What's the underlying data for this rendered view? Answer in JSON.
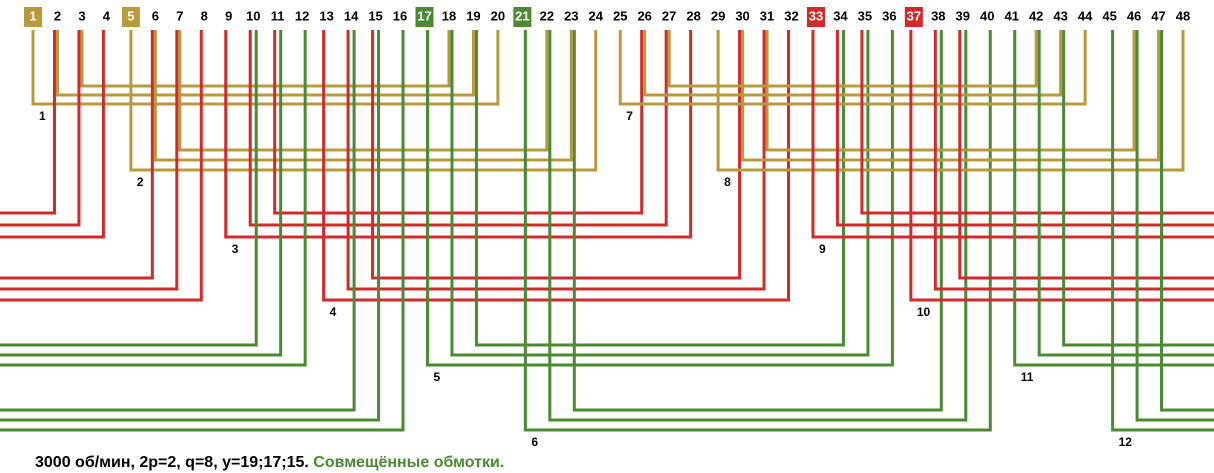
{
  "slots": [
    {
      "label": "1",
      "color": "#b89a3c"
    },
    {
      "label": "2"
    },
    {
      "label": "3"
    },
    {
      "label": "4"
    },
    {
      "label": "5",
      "color": "#b89a3c"
    },
    {
      "label": "6"
    },
    {
      "label": "7"
    },
    {
      "label": "8"
    },
    {
      "label": "9"
    },
    {
      "label": "10"
    },
    {
      "label": "11"
    },
    {
      "label": "12"
    },
    {
      "label": "13"
    },
    {
      "label": "14"
    },
    {
      "label": "15"
    },
    {
      "label": "16"
    },
    {
      "label": "17",
      "color": "#4a8a32"
    },
    {
      "label": "18"
    },
    {
      "label": "19"
    },
    {
      "label": "20"
    },
    {
      "label": "21",
      "color": "#4a8a32"
    },
    {
      "label": "22"
    },
    {
      "label": "23"
    },
    {
      "label": "24"
    },
    {
      "label": "25"
    },
    {
      "label": "26"
    },
    {
      "label": "27"
    },
    {
      "label": "28"
    },
    {
      "label": "29"
    },
    {
      "label": "30"
    },
    {
      "label": "31"
    },
    {
      "label": "32"
    },
    {
      "label": "33",
      "color": "#d22a2a"
    },
    {
      "label": "34"
    },
    {
      "label": "35"
    },
    {
      "label": "36"
    },
    {
      "label": "37",
      "color": "#d22a2a"
    },
    {
      "label": "38"
    },
    {
      "label": "39"
    },
    {
      "label": "40"
    },
    {
      "label": "41"
    },
    {
      "label": "42"
    },
    {
      "label": "43"
    },
    {
      "label": "44"
    },
    {
      "label": "45"
    },
    {
      "label": "46"
    },
    {
      "label": "47"
    },
    {
      "label": "48"
    }
  ],
  "groups": [
    {
      "label": "1",
      "color": "#b89a3c",
      "coils": [
        [
          1,
          20
        ],
        [
          2,
          19
        ],
        [
          3,
          18
        ]
      ]
    },
    {
      "label": "2",
      "color": "#b89a3c",
      "coils": [
        [
          5,
          24
        ],
        [
          6,
          23
        ],
        [
          7,
          22
        ]
      ]
    },
    {
      "label": "3",
      "color": "#d22a2a",
      "coils": [
        [
          9,
          28
        ],
        [
          10,
          27
        ],
        [
          11,
          26
        ]
      ]
    },
    {
      "label": "4",
      "color": "#d22a2a",
      "coils": [
        [
          13,
          32
        ],
        [
          14,
          31
        ],
        [
          15,
          30
        ]
      ]
    },
    {
      "label": "5",
      "color": "#4a8a32",
      "coils": [
        [
          17,
          36
        ],
        [
          18,
          35
        ],
        [
          19,
          34
        ]
      ]
    },
    {
      "label": "6",
      "color": "#4a8a32",
      "coils": [
        [
          21,
          40
        ],
        [
          22,
          39
        ],
        [
          23,
          38
        ]
      ]
    },
    {
      "label": "7",
      "color": "#b89a3c",
      "coils": [
        [
          25,
          44
        ],
        [
          26,
          43
        ],
        [
          27,
          42
        ]
      ]
    },
    {
      "label": "8",
      "color": "#b89a3c",
      "coils": [
        [
          29,
          48
        ],
        [
          30,
          47
        ],
        [
          31,
          46
        ]
      ]
    },
    {
      "label": "9",
      "color": "#d22a2a",
      "coils": [
        [
          33,
          4
        ],
        [
          34,
          3
        ],
        [
          35,
          2
        ]
      ]
    },
    {
      "label": "10",
      "color": "#d22a2a",
      "coils": [
        [
          37,
          8
        ],
        [
          38,
          7
        ],
        [
          39,
          6
        ]
      ]
    },
    {
      "label": "11",
      "color": "#4a8a32",
      "coils": [
        [
          41,
          12
        ],
        [
          42,
          11
        ],
        [
          43,
          10
        ]
      ]
    },
    {
      "label": "12",
      "color": "#4a8a32",
      "coils": [
        [
          45,
          16
        ],
        [
          46,
          15
        ],
        [
          47,
          14
        ]
      ]
    }
  ],
  "caption": [
    "3000 об/мин, 2p=2, q=8, y=19;17;15.",
    "Совмещённые обмотки."
  ]
}
